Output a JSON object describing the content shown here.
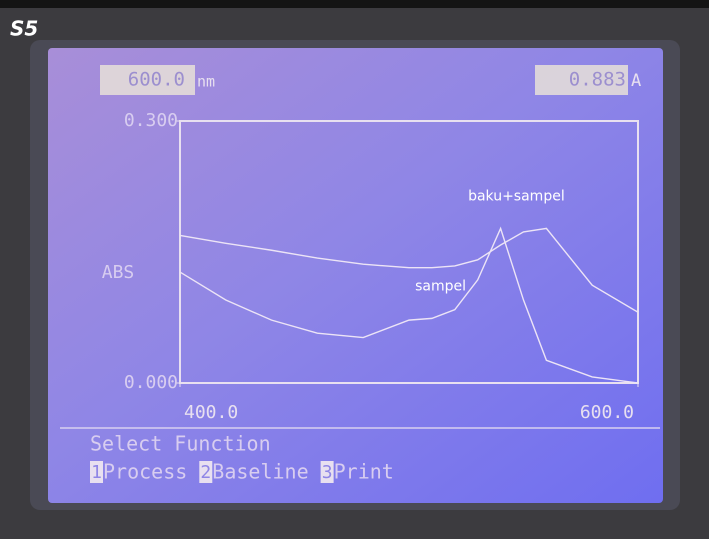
{
  "device_label": "S5",
  "readout": {
    "wavelength": "600.0",
    "wavelength_unit": "nm",
    "absorbance": "0.883",
    "absorbance_unit": "A"
  },
  "chart_data": {
    "type": "line",
    "y_label": "ABS",
    "x": [
      400,
      420,
      440,
      460,
      480,
      500,
      510,
      520,
      530,
      540,
      550,
      560,
      580,
      600
    ],
    "series": [
      {
        "name": "sampel",
        "color": "#ece4f6",
        "values": [
          0.127,
          0.095,
          0.072,
          0.057,
          0.052,
          0.072,
          0.074,
          0.084,
          0.118,
          0.177,
          0.095,
          0.026,
          0.007,
          0
        ]
      },
      {
        "name": "baku+sampel",
        "color": "#ece4f6",
        "values": [
          0.169,
          0.16,
          0.152,
          0.143,
          0.136,
          0.132,
          0.132,
          0.134,
          0.141,
          0.158,
          0.173,
          0.177,
          0.112,
          0.081
        ]
      }
    ],
    "xlim": [
      400,
      600
    ],
    "ylim": [
      0,
      0.3
    ],
    "xticks": [
      {
        "value": 400,
        "label": "400.0"
      },
      {
        "value": 600,
        "label": "600.0"
      }
    ],
    "yticks": [
      {
        "value": 0,
        "label": "0.000"
      },
      {
        "value": 0.3,
        "label": "0.300"
      }
    ],
    "grid": false
  },
  "menu": {
    "title": "Select Function",
    "items": [
      {
        "key": "1",
        "label": "Process"
      },
      {
        "key": "2",
        "label": "Baseline"
      },
      {
        "key": "3",
        "label": "Print"
      }
    ]
  }
}
